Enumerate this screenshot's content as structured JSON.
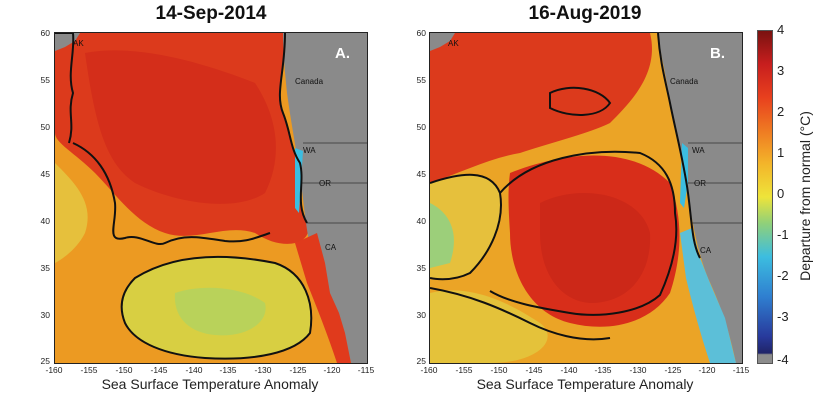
{
  "panel_a": {
    "title": "14-Sep-2014",
    "tag": "A."
  },
  "panel_b": {
    "title": "16-Aug-2019",
    "tag": "B."
  },
  "place_labels": {
    "ak": "AK",
    "canada": "Canada",
    "wa": "WA",
    "or": "OR",
    "ca": "CA"
  },
  "y_ticks": [
    "60",
    "55",
    "50",
    "45",
    "40",
    "35",
    "30",
    "25"
  ],
  "x_ticks": [
    "-160",
    "-155",
    "-150",
    "-145",
    "-140",
    "-135",
    "-130",
    "-125",
    "-120",
    "-115"
  ],
  "x_axis_label": "Sea Surface Temperature Anomaly",
  "colorbar": {
    "label": "Departure from normal (°C)",
    "ticks": [
      "4",
      "3",
      "2",
      "1",
      "0",
      "-1",
      "-2",
      "-3",
      "-4"
    ],
    "range": [
      -4,
      4
    ]
  },
  "colors": {
    "warm": "#e03a1e",
    "moderate": "#f0a020",
    "land": "#8a8a8a",
    "cool": "#3cbde0"
  }
}
